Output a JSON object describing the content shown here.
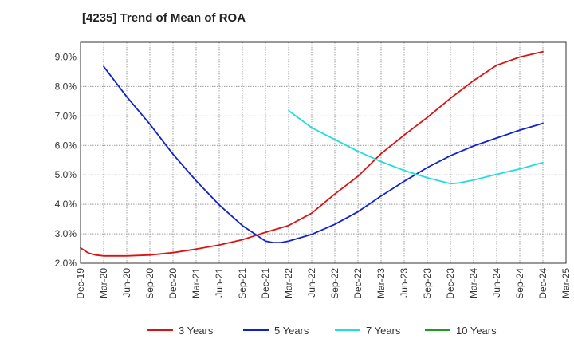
{
  "chart_data": {
    "type": "line",
    "title": "[4235]  Trend of Mean of ROA",
    "xlabel": "",
    "ylabel": "",
    "x_ticks": [
      "Dec-19",
      "Mar-20",
      "Jun-20",
      "Sep-20",
      "Dec-20",
      "Mar-21",
      "Jun-21",
      "Sep-21",
      "Dec-21",
      "Mar-22",
      "Jun-22",
      "Sep-22",
      "Dec-22",
      "Mar-23",
      "Jun-23",
      "Sep-23",
      "Dec-23",
      "Mar-24",
      "Jun-24",
      "Sep-24",
      "Dec-24",
      "Mar-25"
    ],
    "y_ticks": [
      "2.0%",
      "3.0%",
      "4.0%",
      "5.0%",
      "6.0%",
      "7.0%",
      "8.0%",
      "9.0%"
    ],
    "ylim": [
      2.0,
      9.5
    ],
    "grid": true,
    "legend_position": "bottom",
    "series": [
      {
        "name": "3 Years",
        "color": "#dd1111",
        "x": [
          "Dec-19",
          "Jan-20",
          "Feb-20",
          "Mar-20",
          "Jun-20",
          "Sep-20",
          "Dec-20",
          "Mar-21",
          "Jun-21",
          "Sep-21",
          "Dec-21",
          "Mar-22",
          "Jun-22",
          "Sep-22",
          "Dec-22",
          "Mar-23",
          "Jun-23",
          "Sep-23",
          "Dec-23",
          "Mar-24",
          "Jun-24",
          "Sep-24",
          "Dec-24"
        ],
        "values": [
          2.52,
          2.35,
          2.28,
          2.25,
          2.25,
          2.28,
          2.36,
          2.48,
          2.62,
          2.8,
          3.05,
          3.28,
          3.7,
          4.35,
          4.95,
          5.72,
          6.35,
          6.95,
          7.6,
          8.2,
          8.72,
          9.0,
          9.18
        ]
      },
      {
        "name": "5 Years",
        "color": "#1122cc",
        "x": [
          "Mar-20",
          "Jun-20",
          "Sep-20",
          "Dec-20",
          "Mar-21",
          "Jun-21",
          "Sep-21",
          "Dec-21",
          "Jan-22",
          "Feb-22",
          "Mar-22",
          "Jun-22",
          "Sep-22",
          "Dec-22",
          "Mar-23",
          "Jun-23",
          "Sep-23",
          "Dec-23",
          "Mar-24",
          "Jun-24",
          "Sep-24",
          "Dec-24"
        ],
        "values": [
          8.68,
          7.65,
          6.72,
          5.7,
          4.8,
          3.98,
          3.28,
          2.75,
          2.7,
          2.7,
          2.75,
          2.98,
          3.32,
          3.75,
          4.28,
          4.78,
          5.25,
          5.65,
          5.98,
          6.25,
          6.52,
          6.75
        ]
      },
      {
        "name": "7 Years",
        "color": "#22dddd",
        "x": [
          "Mar-22",
          "Jun-22",
          "Sep-22",
          "Dec-22",
          "Mar-23",
          "Jun-23",
          "Sep-23",
          "Dec-23",
          "Jan-24",
          "Mar-24",
          "Jun-24",
          "Sep-24",
          "Dec-24"
        ],
        "values": [
          7.18,
          6.6,
          6.2,
          5.8,
          5.45,
          5.15,
          4.9,
          4.7,
          4.72,
          4.82,
          5.02,
          5.2,
          5.42
        ]
      },
      {
        "name": "10 Years",
        "color": "#229922",
        "x": [],
        "values": []
      }
    ]
  }
}
